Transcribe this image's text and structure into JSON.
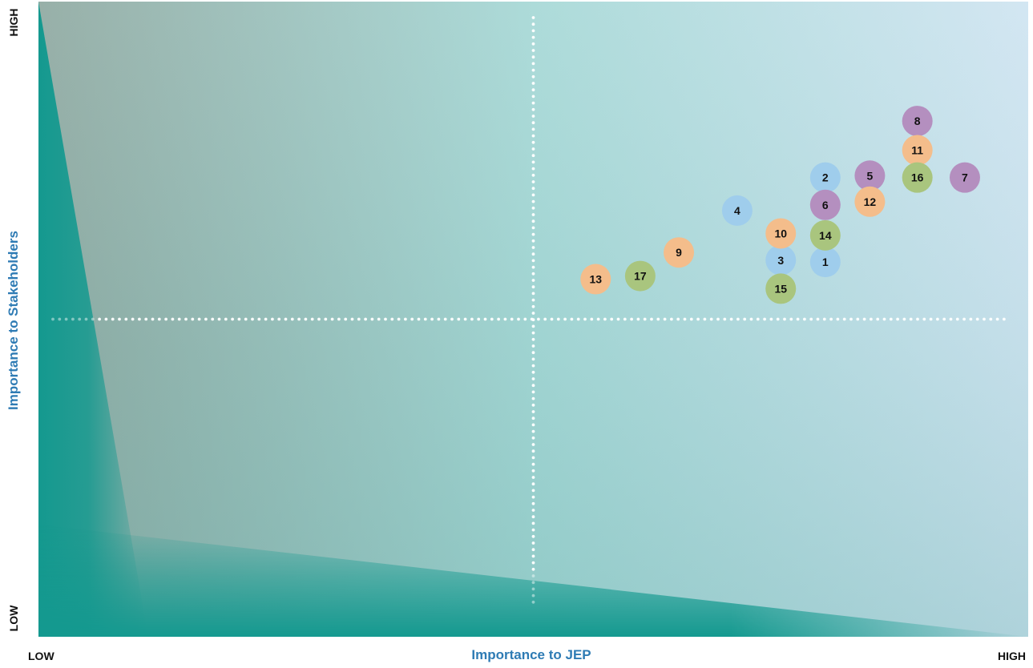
{
  "axes": {
    "y_label": "Importance to Stakeholders",
    "x_label": "Importance to JEP",
    "y_high": "HIGH",
    "y_low": "LOW",
    "x_low": "LOW",
    "x_high": "HIGH"
  },
  "colors": {
    "blue": "#9fcdec",
    "purple": "#b48fbf",
    "orange": "#f4bd8b",
    "green": "#a9c57e",
    "teal": "#14998f",
    "axis_title": "#2e7bb4"
  },
  "chart_data": {
    "type": "scatter",
    "title": "",
    "xlabel": "Importance to JEP",
    "ylabel": "Importance to Stakeholders",
    "xlim": [
      0,
      100
    ],
    "ylim": [
      0,
      100
    ],
    "grid": false,
    "dividers": {
      "x": 50,
      "y": 50
    },
    "points": [
      {
        "label": "1",
        "x": 79.5,
        "y": 59.0,
        "color": "blue"
      },
      {
        "label": "2",
        "x": 79.5,
        "y": 72.3,
        "color": "blue"
      },
      {
        "label": "3",
        "x": 75.0,
        "y": 59.3,
        "color": "blue"
      },
      {
        "label": "4",
        "x": 70.6,
        "y": 67.1,
        "color": "blue"
      },
      {
        "label": "5",
        "x": 84.0,
        "y": 72.6,
        "color": "purple"
      },
      {
        "label": "6",
        "x": 79.5,
        "y": 68.0,
        "color": "purple"
      },
      {
        "label": "7",
        "x": 93.6,
        "y": 72.3,
        "color": "purple"
      },
      {
        "label": "8",
        "x": 88.8,
        "y": 81.2,
        "color": "purple"
      },
      {
        "label": "9",
        "x": 64.7,
        "y": 60.5,
        "color": "orange"
      },
      {
        "label": "10",
        "x": 75.0,
        "y": 63.5,
        "color": "orange"
      },
      {
        "label": "11",
        "x": 88.8,
        "y": 76.6,
        "color": "orange"
      },
      {
        "label": "12",
        "x": 84.0,
        "y": 68.5,
        "color": "orange"
      },
      {
        "label": "13",
        "x": 56.3,
        "y": 56.3,
        "color": "orange"
      },
      {
        "label": "14",
        "x": 79.5,
        "y": 63.2,
        "color": "green"
      },
      {
        "label": "15",
        "x": 75.0,
        "y": 54.8,
        "color": "green"
      },
      {
        "label": "16",
        "x": 88.8,
        "y": 72.3,
        "color": "green"
      },
      {
        "label": "17",
        "x": 60.8,
        "y": 56.8,
        "color": "green"
      }
    ]
  }
}
